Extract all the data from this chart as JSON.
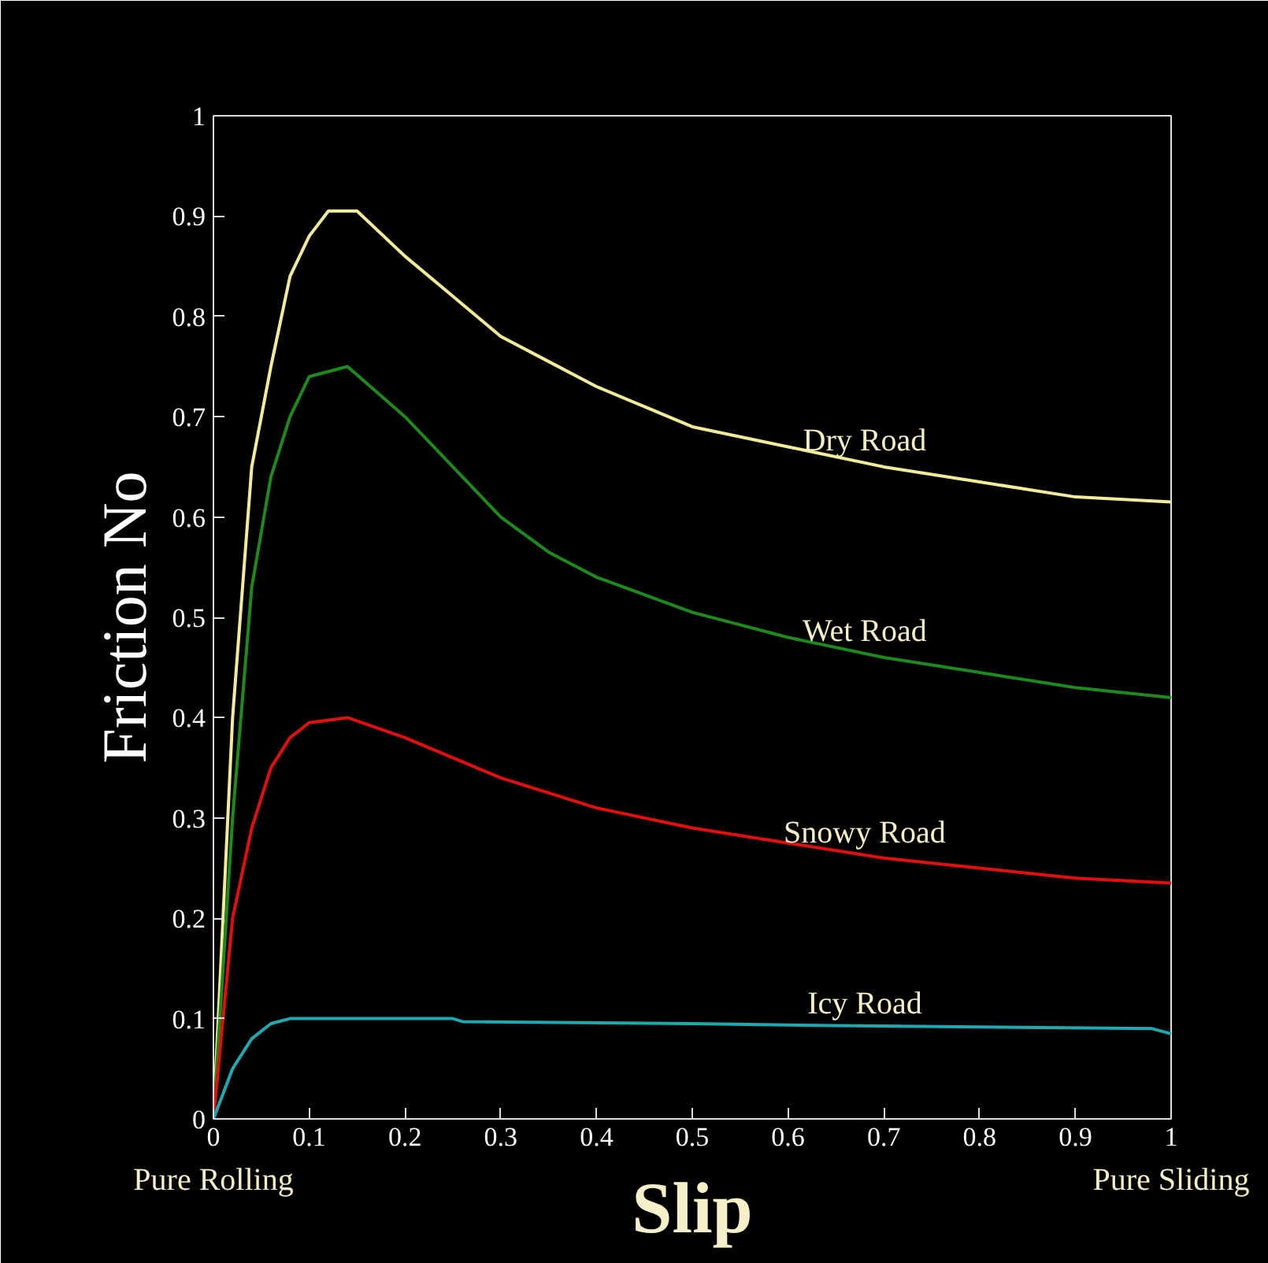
{
  "chart_data": {
    "type": "line",
    "xlabel": "Slip",
    "ylabel": "Friction No",
    "xlim": [
      0,
      1
    ],
    "ylim": [
      0,
      1
    ],
    "xticks": [
      0,
      0.1,
      0.2,
      0.3,
      0.4,
      0.5,
      0.6,
      0.7,
      0.8,
      0.9,
      1
    ],
    "yticks": [
      0,
      0.1,
      0.2,
      0.3,
      0.4,
      0.5,
      0.6,
      0.7,
      0.8,
      0.9,
      1
    ],
    "grid": false,
    "legend": false,
    "marker": "none",
    "line_style": "solid",
    "series": [
      {
        "name": "Dry Road",
        "color": "#f2eb9a",
        "x": [
          0,
          0.02,
          0.04,
          0.06,
          0.08,
          0.1,
          0.12,
          0.15,
          0.2,
          0.25,
          0.3,
          0.35,
          0.4,
          0.45,
          0.5,
          0.55,
          0.6,
          0.7,
          0.8,
          0.9,
          1.0
        ],
        "values": [
          0,
          0.4,
          0.65,
          0.75,
          0.84,
          0.88,
          0.905,
          0.905,
          0.86,
          0.82,
          0.78,
          0.755,
          0.73,
          0.71,
          0.69,
          0.68,
          0.67,
          0.65,
          0.635,
          0.62,
          0.615
        ]
      },
      {
        "name": "Wet Road",
        "color": "#1e8a1e",
        "x": [
          0,
          0.02,
          0.04,
          0.06,
          0.08,
          0.1,
          0.14,
          0.2,
          0.25,
          0.3,
          0.35,
          0.4,
          0.5,
          0.6,
          0.7,
          0.8,
          0.9,
          1.0
        ],
        "values": [
          0,
          0.3,
          0.53,
          0.64,
          0.7,
          0.74,
          0.75,
          0.7,
          0.65,
          0.6,
          0.565,
          0.54,
          0.505,
          0.48,
          0.46,
          0.445,
          0.43,
          0.42
        ]
      },
      {
        "name": "Snowy Road",
        "color": "#e01010",
        "x": [
          0,
          0.02,
          0.04,
          0.06,
          0.08,
          0.1,
          0.14,
          0.2,
          0.25,
          0.3,
          0.4,
          0.5,
          0.6,
          0.7,
          0.8,
          0.9,
          1.0
        ],
        "values": [
          0,
          0.2,
          0.29,
          0.35,
          0.38,
          0.395,
          0.4,
          0.38,
          0.36,
          0.34,
          0.31,
          0.29,
          0.275,
          0.26,
          0.25,
          0.24,
          0.235
        ]
      },
      {
        "name": "Icy Road",
        "color": "#20a8b0",
        "x": [
          0,
          0.02,
          0.04,
          0.06,
          0.08,
          0.1,
          0.25,
          0.26,
          0.5,
          0.65,
          0.98,
          1.0
        ],
        "values": [
          0,
          0.05,
          0.08,
          0.095,
          0.1,
          0.1,
          0.1,
          0.097,
          0.095,
          0.093,
          0.09,
          0.085
        ]
      }
    ],
    "annotations": [
      "Pure Rolling",
      "Pure Sliding"
    ]
  }
}
